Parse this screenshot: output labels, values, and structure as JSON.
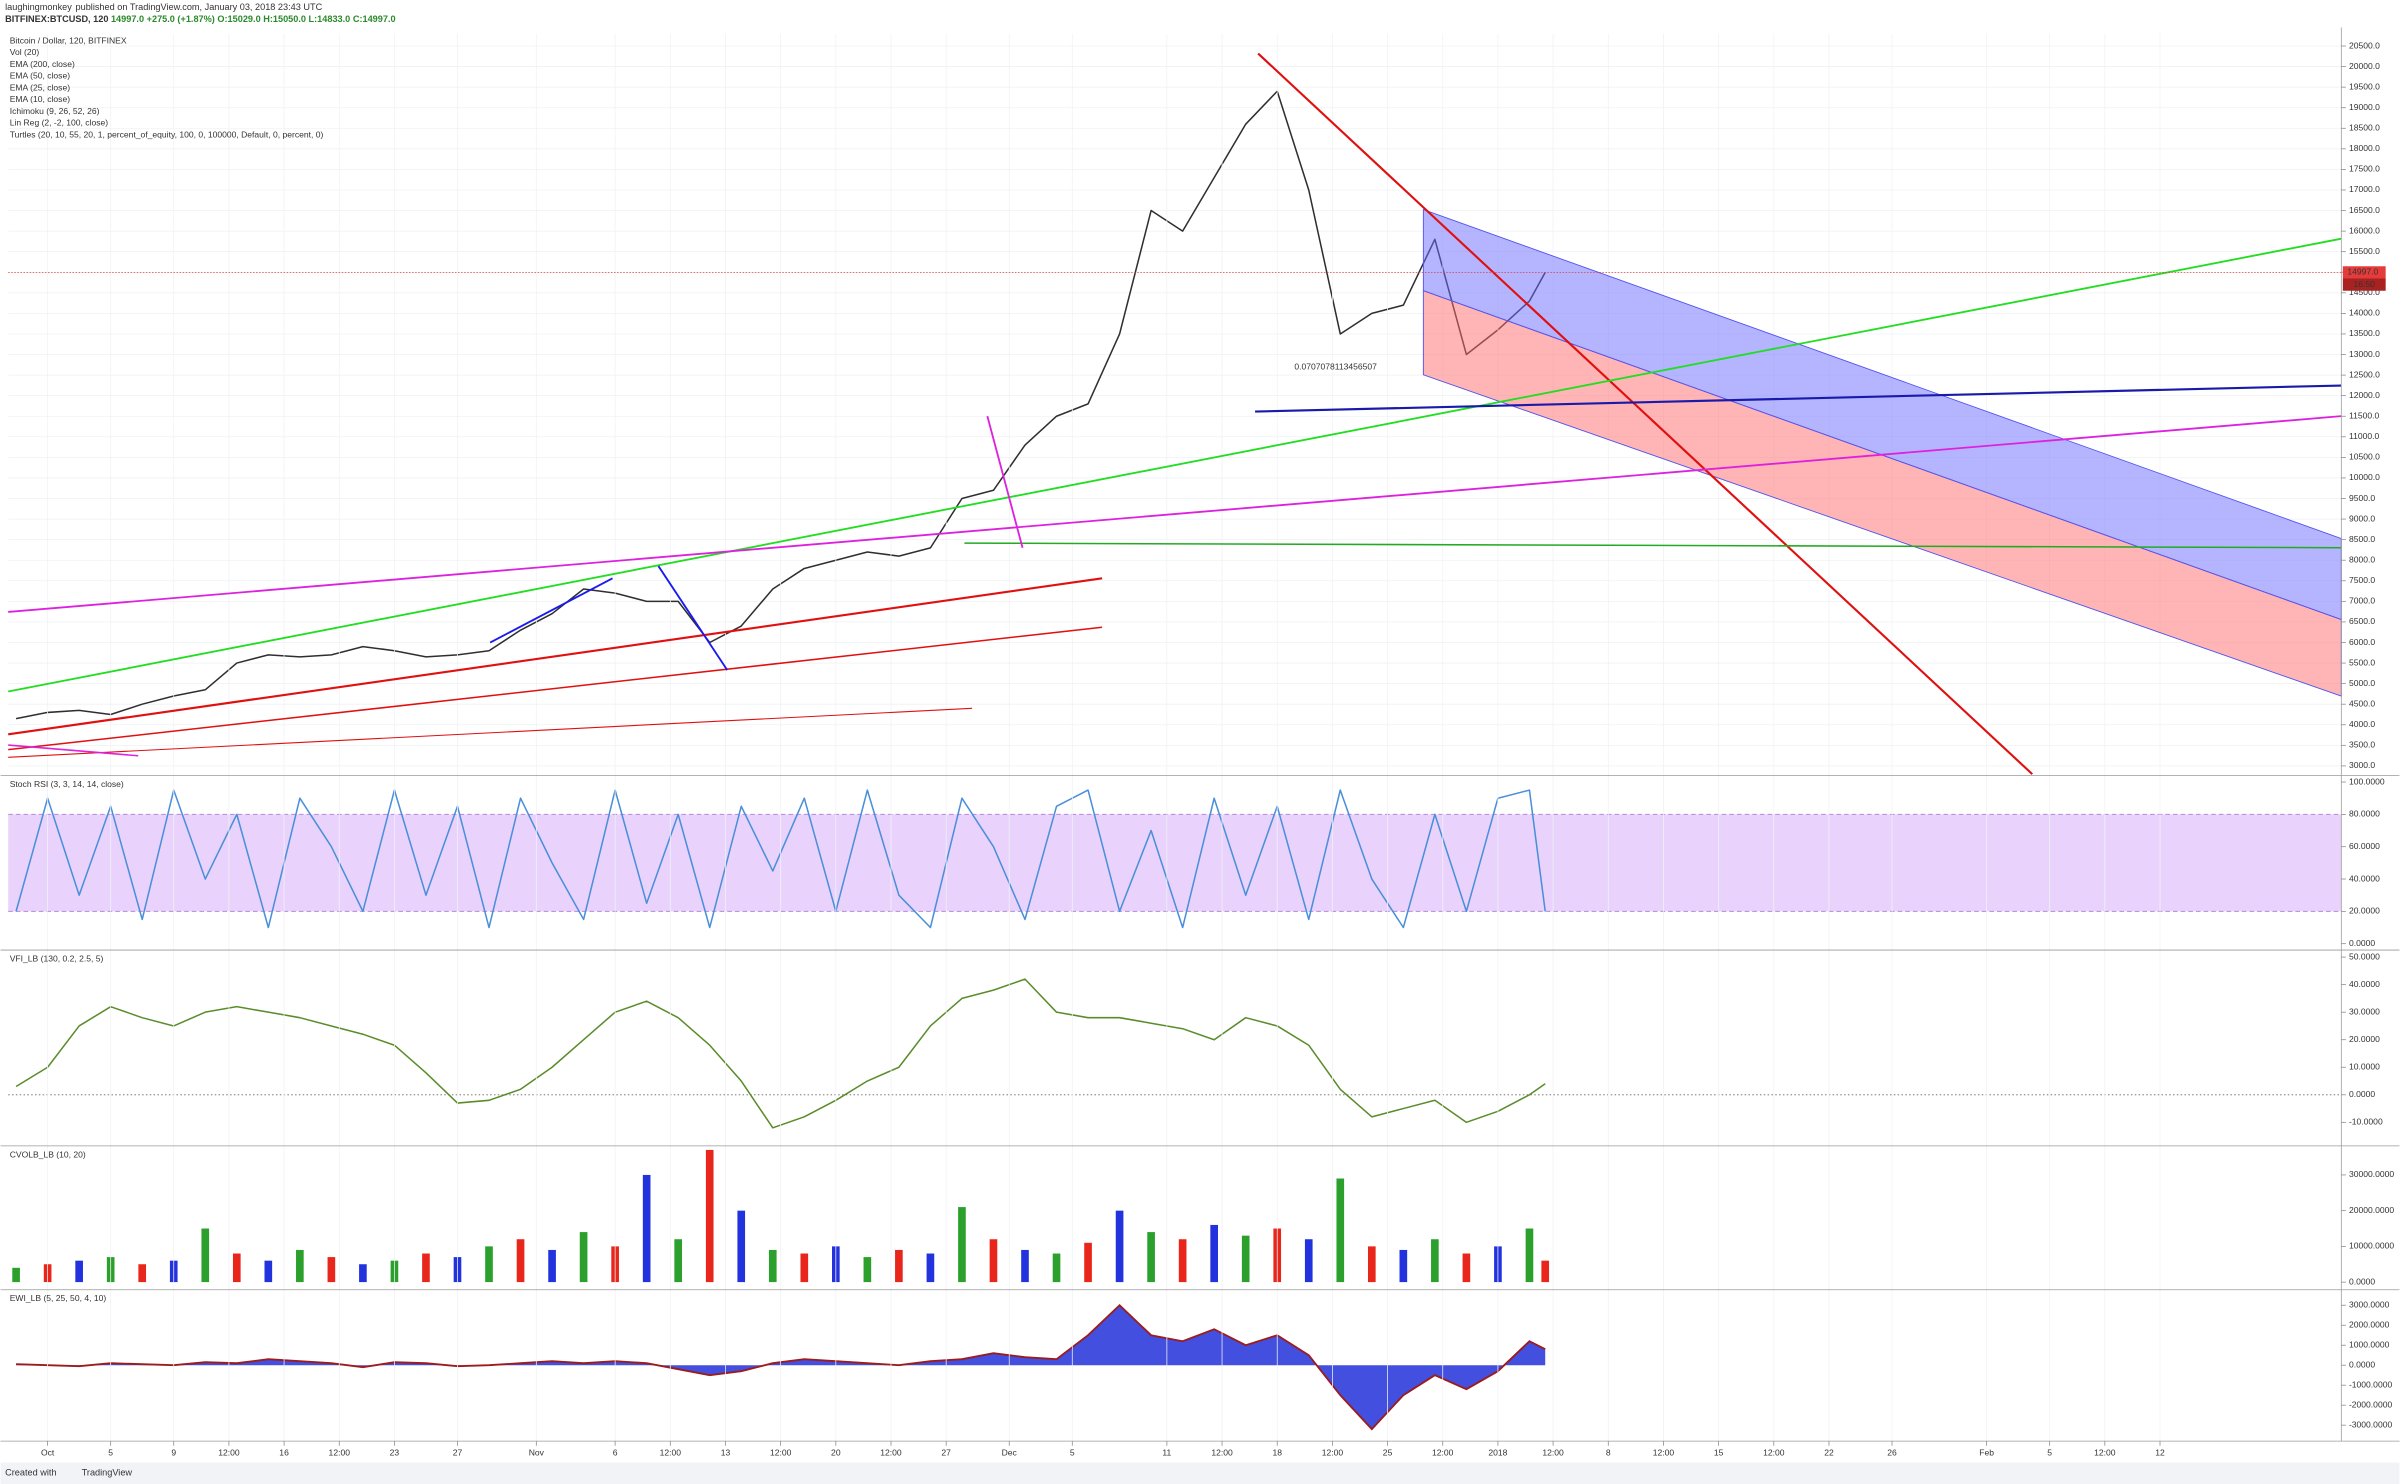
{
  "header": {
    "author": "laughingmonkey",
    "published": "published on TradingView.com, January 03, 2018 23:43 UTC",
    "symbol": "BITFINEX:BTCUSD, 120",
    "last": "14997.0",
    "change": "+275.0 (+1.87%)",
    "open": "O:15029.0",
    "high": "H:15050.0",
    "low": "L:14833.0",
    "close": "C:14997.0"
  },
  "footer": {
    "created": "Created with",
    "brand": "TradingView"
  },
  "chart_data": [
    {
      "type": "line",
      "title": "Bitcoin / Dollar, 120, BITFINEX",
      "indicators": [
        "Vol (20)",
        "EMA (200, close)",
        "EMA (50, close)",
        "EMA (25, close)",
        "EMA (10, close)",
        "Ichimoku (9, 26, 52, 26)",
        "Lin Reg (2, -2, 100, close)",
        "Turtles (20, 10, 55, 20, 1, percent_of_equity, 100, 0, 100000, Default, 0, percent, 0)"
      ],
      "annotation": "0.0707078113456507",
      "last_label": "14997.0",
      "countdown": "16:50",
      "grid": true,
      "xlim": [
        -2.5,
        145.5
      ],
      "x": [
        -2,
        0,
        2,
        4,
        6,
        8,
        10,
        12,
        14,
        16,
        18,
        20,
        22,
        24,
        26,
        28,
        30,
        32,
        34,
        36,
        38,
        40,
        42,
        44,
        46,
        48,
        50,
        52,
        54,
        56,
        58,
        60,
        62,
        64,
        66,
        68,
        70,
        72,
        74,
        76,
        78,
        80,
        82,
        84,
        86,
        88,
        90,
        92,
        94,
        95
      ],
      "series": [
        {
          "color": "#2f2f2f",
          "values": [
            4150,
            4300,
            4350,
            4250,
            4500,
            4700,
            4850,
            5500,
            5700,
            5650,
            5700,
            5900,
            5800,
            5650,
            5700,
            5800,
            6300,
            6700,
            7300,
            7200,
            7000,
            7000,
            6000,
            6400,
            7300,
            7800,
            8000,
            8200,
            8100,
            8300,
            9500,
            9700,
            10800,
            11500,
            11800,
            13500,
            16500,
            16000,
            17300,
            18600,
            19400,
            17000,
            13500,
            14000,
            14200,
            15800,
            13000,
            13600,
            14300,
            14997
          ]
        }
      ],
      "ylim": [
        2800,
        20800
      ],
      "yticks": [
        {
          "value": 3000,
          "label": "3000.0"
        },
        {
          "value": 3500,
          "label": "3500.0"
        },
        {
          "value": 4000,
          "label": "4000.0"
        },
        {
          "value": 4500,
          "label": "4500.0"
        },
        {
          "value": 5000,
          "label": "5000.0"
        },
        {
          "value": 5500,
          "label": "5500.0"
        },
        {
          "value": 6000,
          "label": "6000.0"
        },
        {
          "value": 6500,
          "label": "6500.0"
        },
        {
          "value": 7000,
          "label": "7000.0"
        },
        {
          "value": 7500,
          "label": "7500.0"
        },
        {
          "value": 8000,
          "label": "8000.0"
        },
        {
          "value": 8500,
          "label": "8500.0"
        },
        {
          "value": 9000,
          "label": "9000.0"
        },
        {
          "value": 9500,
          "label": "9500.0"
        },
        {
          "value": 10000,
          "label": "10000.0"
        },
        {
          "value": 10500,
          "label": "10500.0"
        },
        {
          "value": 11000,
          "label": "11000.0"
        },
        {
          "value": 11500,
          "label": "11500.0"
        },
        {
          "value": 12000,
          "label": "12000.0"
        },
        {
          "value": 12500,
          "label": "12500.0"
        },
        {
          "value": 13000,
          "label": "13000.0"
        },
        {
          "value": 13500,
          "label": "13500.0"
        },
        {
          "value": 14000,
          "label": "14000.0"
        },
        {
          "value": 14500,
          "label": "14500.0"
        },
        {
          "value": 15000,
          "label": "15000.0"
        },
        {
          "value": 15500,
          "label": "15500.0"
        },
        {
          "value": 16000,
          "label": "16000.0"
        },
        {
          "value": 16500,
          "label": "16500.0"
        },
        {
          "value": 17000,
          "label": "17000.0"
        },
        {
          "value": 17500,
          "label": "17500.0"
        },
        {
          "value": 18000,
          "label": "18000.0"
        },
        {
          "value": 18500,
          "label": "18500.0"
        },
        {
          "value": 19000,
          "label": "19000.0"
        },
        {
          "value": 19500,
          "label": "19500.0"
        },
        {
          "value": 20000,
          "label": "20000.0"
        },
        {
          "value": 20500,
          "label": "20500.0"
        }
      ]
    },
    {
      "type": "line",
      "title": "Stoch RSI (3, 3, 14, 14, close)",
      "bands": [
        20,
        80
      ],
      "band_color": "#e3c8fb",
      "xlim": [
        -2.5,
        145.5
      ],
      "x": [
        -2,
        0,
        2,
        4,
        6,
        8,
        10,
        12,
        14,
        16,
        18,
        20,
        22,
        24,
        26,
        28,
        30,
        32,
        34,
        36,
        38,
        40,
        42,
        44,
        46,
        48,
        50,
        52,
        54,
        56,
        58,
        60,
        62,
        64,
        66,
        68,
        70,
        72,
        74,
        76,
        78,
        80,
        82,
        84,
        86,
        88,
        90,
        92,
        94,
        95
      ],
      "series": [
        {
          "color": "#4a8fd9",
          "values": [
            20,
            90,
            30,
            85,
            15,
            95,
            40,
            80,
            10,
            90,
            60,
            20,
            95,
            30,
            85,
            10,
            90,
            50,
            15,
            95,
            25,
            80,
            10,
            85,
            45,
            90,
            20,
            95,
            30,
            10,
            90,
            60,
            15,
            85,
            95,
            20,
            70,
            10,
            90,
            30,
            85,
            15,
            95,
            40,
            10,
            80,
            20,
            90,
            95,
            20
          ]
        }
      ],
      "ylim": [
        -3,
        103
      ],
      "yticks": [
        {
          "value": 0,
          "label": "0.0000"
        },
        {
          "value": 20,
          "label": "20.0000"
        },
        {
          "value": 40,
          "label": "40.0000"
        },
        {
          "value": 60,
          "label": "60.0000"
        },
        {
          "value": 80,
          "label": "80.0000"
        },
        {
          "value": 100,
          "label": "100.0000"
        }
      ]
    },
    {
      "type": "line",
      "title": "VFI_LB (130, 0.2, 2.5, 5)",
      "baseline": 0,
      "xlim": [
        -2.5,
        145.5
      ],
      "x": [
        -2,
        0,
        2,
        4,
        6,
        8,
        10,
        12,
        14,
        16,
        18,
        20,
        22,
        24,
        26,
        28,
        30,
        32,
        34,
        36,
        38,
        40,
        42,
        44,
        46,
        48,
        50,
        52,
        54,
        56,
        58,
        60,
        62,
        64,
        66,
        68,
        70,
        72,
        74,
        76,
        78,
        80,
        82,
        84,
        86,
        88,
        90,
        92,
        94,
        95
      ],
      "series": [
        {
          "color": "#5b8c2a",
          "values": [
            3,
            10,
            25,
            32,
            28,
            25,
            30,
            32,
            30,
            28,
            25,
            22,
            18,
            8,
            -3,
            -2,
            2,
            10,
            20,
            30,
            34,
            28,
            18,
            5,
            -12,
            -8,
            -2,
            5,
            10,
            25,
            35,
            38,
            42,
            30,
            28,
            28,
            26,
            24,
            20,
            28,
            25,
            18,
            2,
            -8,
            -5,
            -2,
            -10,
            -6,
            0,
            4
          ]
        }
      ],
      "ylim": [
        -18,
        52
      ],
      "yticks": [
        {
          "value": -10,
          "label": "-10.0000"
        },
        {
          "value": 0,
          "label": "0.0000"
        },
        {
          "value": 10,
          "label": "10.0000"
        },
        {
          "value": 20,
          "label": "20.0000"
        },
        {
          "value": 30,
          "label": "30.0000"
        },
        {
          "value": 40,
          "label": "40.0000"
        },
        {
          "value": 50,
          "label": "50.0000"
        }
      ]
    },
    {
      "type": "bar",
      "title": "CVOLB_LB (10, 20)",
      "colors": [
        "#2ca02c",
        "#e8261b",
        "#2233dd"
      ],
      "xlim": [
        -2.5,
        145.5
      ],
      "x": [
        -2,
        0,
        2,
        4,
        6,
        8,
        10,
        12,
        14,
        16,
        18,
        20,
        22,
        24,
        26,
        28,
        30,
        32,
        34,
        36,
        38,
        40,
        42,
        44,
        46,
        48,
        50,
        52,
        54,
        56,
        58,
        60,
        62,
        64,
        66,
        68,
        70,
        72,
        74,
        76,
        78,
        80,
        82,
        84,
        86,
        88,
        90,
        92,
        94,
        95
      ],
      "values": [
        4000,
        5000,
        6000,
        7000,
        5000,
        6000,
        15000,
        8000,
        6000,
        9000,
        7000,
        5000,
        6000,
        8000,
        7000,
        10000,
        12000,
        9000,
        14000,
        10000,
        30000,
        12000,
        37000,
        20000,
        9000,
        8000,
        10000,
        7000,
        9000,
        8000,
        21000,
        12000,
        9000,
        8000,
        11000,
        20000,
        14000,
        12000,
        16000,
        13000,
        15000,
        12000,
        29000,
        10000,
        9000,
        12000,
        8000,
        10000,
        15000,
        6000
      ],
      "ylim": [
        -1700,
        37700
      ],
      "yticks": [
        {
          "value": 0,
          "label": "0.0000"
        },
        {
          "value": 10000,
          "label": "10000.0000"
        },
        {
          "value": 20000,
          "label": "20000.0000"
        },
        {
          "value": 30000,
          "label": "30000.0000"
        }
      ]
    },
    {
      "type": "area",
      "title": "EWI_LB (5, 25, 50, 4, 10)",
      "color": "#2230d8",
      "line_color": "#9b1c1c",
      "xlim": [
        -2.5,
        145.5
      ],
      "x": [
        -2,
        0,
        2,
        4,
        6,
        8,
        10,
        12,
        14,
        16,
        18,
        20,
        22,
        24,
        26,
        28,
        30,
        32,
        34,
        36,
        38,
        40,
        42,
        44,
        46,
        48,
        50,
        52,
        54,
        56,
        58,
        60,
        62,
        64,
        66,
        68,
        70,
        72,
        74,
        76,
        78,
        80,
        82,
        84,
        86,
        88,
        90,
        92,
        94,
        95
      ],
      "values": [
        50,
        0,
        -50,
        100,
        50,
        0,
        150,
        100,
        300,
        200,
        100,
        -100,
        150,
        100,
        -50,
        0,
        100,
        200,
        100,
        200,
        100,
        -200,
        -500,
        -300,
        100,
        300,
        200,
        100,
        0,
        200,
        300,
        600,
        400,
        300,
        1500,
        3000,
        1500,
        1200,
        1800,
        1000,
        1500,
        500,
        -1500,
        -3200,
        -1500,
        -500,
        -1200,
        -300,
        1200,
        800
      ],
      "ylim": [
        -3800,
        3700
      ],
      "yticks": [
        {
          "value": -3000,
          "label": "-3000.0000"
        },
        {
          "value": -2000,
          "label": "-2000.0000"
        },
        {
          "value": -1000,
          "label": "-1000.0000"
        },
        {
          "value": 0,
          "label": "0.0000"
        },
        {
          "value": 1000,
          "label": "1000.0000"
        },
        {
          "value": 2000,
          "label": "2000.0000"
        },
        {
          "value": 3000,
          "label": "3000.0000"
        }
      ],
      "xticks": [
        {
          "value": 0,
          "label": "Oct"
        },
        {
          "value": 4,
          "label": "5"
        },
        {
          "value": 8,
          "label": "9"
        },
        {
          "value": 11.5,
          "label": "12:00"
        },
        {
          "value": 15,
          "label": "16"
        },
        {
          "value": 18.5,
          "label": "12:00"
        },
        {
          "value": 22,
          "label": "23"
        },
        {
          "value": 26,
          "label": "27"
        },
        {
          "value": 31,
          "label": "Nov"
        },
        {
          "value": 36,
          "label": "6"
        },
        {
          "value": 39.5,
          "label": "12:00"
        },
        {
          "value": 43,
          "label": "13"
        },
        {
          "value": 46.5,
          "label": "12:00"
        },
        {
          "value": 50,
          "label": "20"
        },
        {
          "value": 53.5,
          "label": "12:00"
        },
        {
          "value": 57,
          "label": "27"
        },
        {
          "value": 61,
          "label": "Dec"
        },
        {
          "value": 65,
          "label": "5"
        },
        {
          "value": 71,
          "label": "11"
        },
        {
          "value": 74.5,
          "label": "12:00"
        },
        {
          "value": 78,
          "label": "18"
        },
        {
          "value": 81.5,
          "label": "12:00"
        },
        {
          "value": 85,
          "label": "25"
        },
        {
          "value": 88.5,
          "label": "12:00"
        },
        {
          "value": 92,
          "label": "2018"
        },
        {
          "value": 95.5,
          "label": "12:00"
        },
        {
          "value": 99,
          "label": "8"
        },
        {
          "value": 102.5,
          "label": "12:00"
        },
        {
          "value": 106,
          "label": "15"
        },
        {
          "value": 109.5,
          "label": "12:00"
        },
        {
          "value": 113,
          "label": "22"
        },
        {
          "value": 117,
          "label": "26"
        },
        {
          "value": 123,
          "label": "Feb"
        },
        {
          "value": 127,
          "label": "5"
        },
        {
          "value": 130.5,
          "label": "12:00"
        },
        {
          "value": 134,
          "label": "12"
        }
      ]
    }
  ]
}
